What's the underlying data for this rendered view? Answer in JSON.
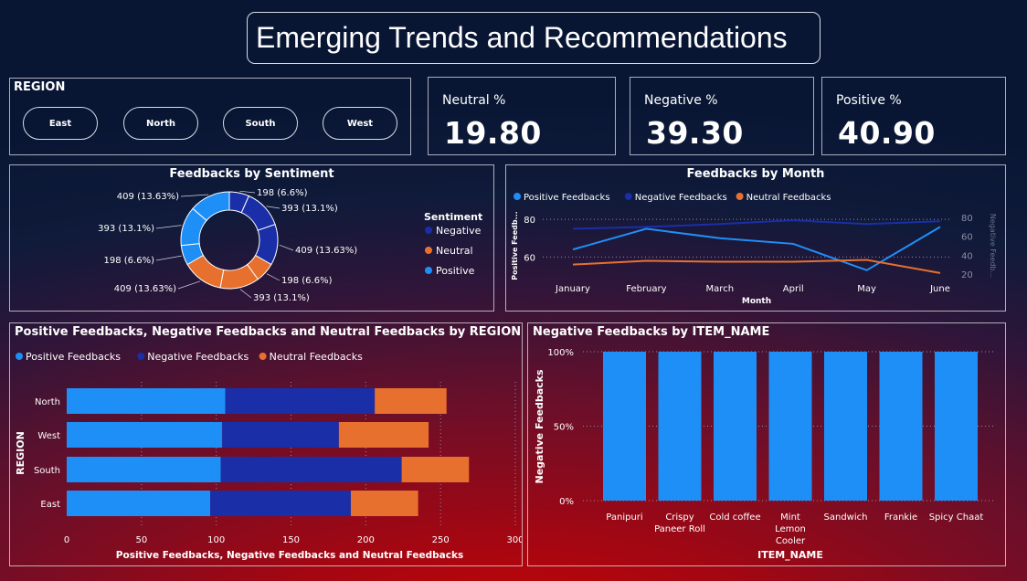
{
  "title": "Emerging Trends and Recommendations",
  "slicer": {
    "label": "REGION",
    "options": [
      "East",
      "North",
      "South",
      "West"
    ]
  },
  "kpis": {
    "neutral": {
      "label": "Neutral %",
      "value": "19.80"
    },
    "negative": {
      "label": "Negative %",
      "value": "39.30"
    },
    "positive": {
      "label": "Positive %",
      "value": "40.90"
    }
  },
  "colors": {
    "positive": "#1f8ff8",
    "negative": "#1a2ea8",
    "neutral": "#e8702f",
    "grid": "#8a8fa8"
  },
  "chart_data": [
    {
      "type": "pie",
      "title": "Feedbacks by Sentiment",
      "legend_title": "Sentiment",
      "legend": [
        "Negative",
        "Neutral",
        "Positive"
      ],
      "slices": [
        {
          "sentiment": "Negative",
          "value": 198,
          "label": "198 (6.6%)"
        },
        {
          "sentiment": "Negative",
          "value": 393,
          "label": "393 (13.1%)"
        },
        {
          "sentiment": "Negative",
          "value": 409,
          "label": "409 (13.63%)"
        },
        {
          "sentiment": "Neutral",
          "value": 198,
          "label": "198 (6.6%)"
        },
        {
          "sentiment": "Neutral",
          "value": 393,
          "label": "393 (13.1%)"
        },
        {
          "sentiment": "Neutral",
          "value": 409,
          "label": "409 (13.63%)"
        },
        {
          "sentiment": "Positive",
          "value": 198,
          "label": "198 (6.6%)"
        },
        {
          "sentiment": "Positive",
          "value": 393,
          "label": "393 (13.1%)"
        },
        {
          "sentiment": "Positive",
          "value": 409,
          "label": "409 (13.63%)"
        }
      ]
    },
    {
      "type": "line",
      "title": "Feedbacks by Month",
      "xlabel": "Month",
      "ylabel": "Positive Feedb...",
      "y2label": "Negative Feedb...",
      "categories": [
        "January",
        "February",
        "March",
        "April",
        "May",
        "June"
      ],
      "ylim": [
        50,
        82
      ],
      "yticks": [
        60,
        80
      ],
      "y2lim": [
        18,
        82
      ],
      "y2ticks": [
        20,
        40,
        60,
        80
      ],
      "series": [
        {
          "name": "Positive Feedbacks",
          "axis": "left",
          "values": [
            64,
            75,
            70,
            67,
            53,
            76
          ]
        },
        {
          "name": "Negative Feedbacks",
          "axis": "right",
          "values": [
            68,
            70,
            73,
            77,
            73,
            76
          ]
        },
        {
          "name": "Neutral Feedbacks",
          "axis": "right",
          "values": [
            30,
            34,
            33,
            33,
            35,
            21
          ]
        }
      ]
    },
    {
      "type": "bar",
      "orientation": "horizontal",
      "stacked": true,
      "title": "Positive Feedbacks, Negative Feedbacks and Neutral Feedbacks by REGION",
      "xlabel": "Positive Feedbacks, Negative Feedbacks and Neutral Feedbacks",
      "ylabel": "REGION",
      "xlim": [
        0,
        300
      ],
      "xticks": [
        0,
        50,
        100,
        150,
        200,
        250,
        300
      ],
      "categories": [
        "North",
        "West",
        "South",
        "East"
      ],
      "series": [
        {
          "name": "Positive Feedbacks",
          "values": [
            106,
            104,
            103,
            96
          ]
        },
        {
          "name": "Negative Feedbacks",
          "values": [
            100,
            78,
            121,
            94
          ]
        },
        {
          "name": "Neutral Feedbacks",
          "values": [
            48,
            60,
            45,
            45
          ]
        }
      ]
    },
    {
      "type": "bar",
      "title": "Negative Feedbacks by ITEM_NAME",
      "xlabel": "ITEM_NAME",
      "ylabel": "Negative Feedbacks",
      "ylim": [
        0,
        100
      ],
      "yticks": [
        "0%",
        "50%",
        "100%"
      ],
      "categories": [
        "Panipuri",
        "Crispy Paneer Roll",
        "Cold coffee",
        "Mint Lemon Cooler",
        "Sandwich",
        "Frankie",
        "Spicy Chaat"
      ],
      "category_lines": [
        [
          "Panipuri"
        ],
        [
          "Crispy",
          "Paneer Roll"
        ],
        [
          "Cold coffee"
        ],
        [
          "Mint",
          "Lemon",
          "Cooler"
        ],
        [
          "Sandwich"
        ],
        [
          "Frankie"
        ],
        [
          "Spicy Chaat"
        ]
      ],
      "values": [
        100,
        100,
        100,
        100,
        100,
        100,
        100
      ]
    }
  ]
}
